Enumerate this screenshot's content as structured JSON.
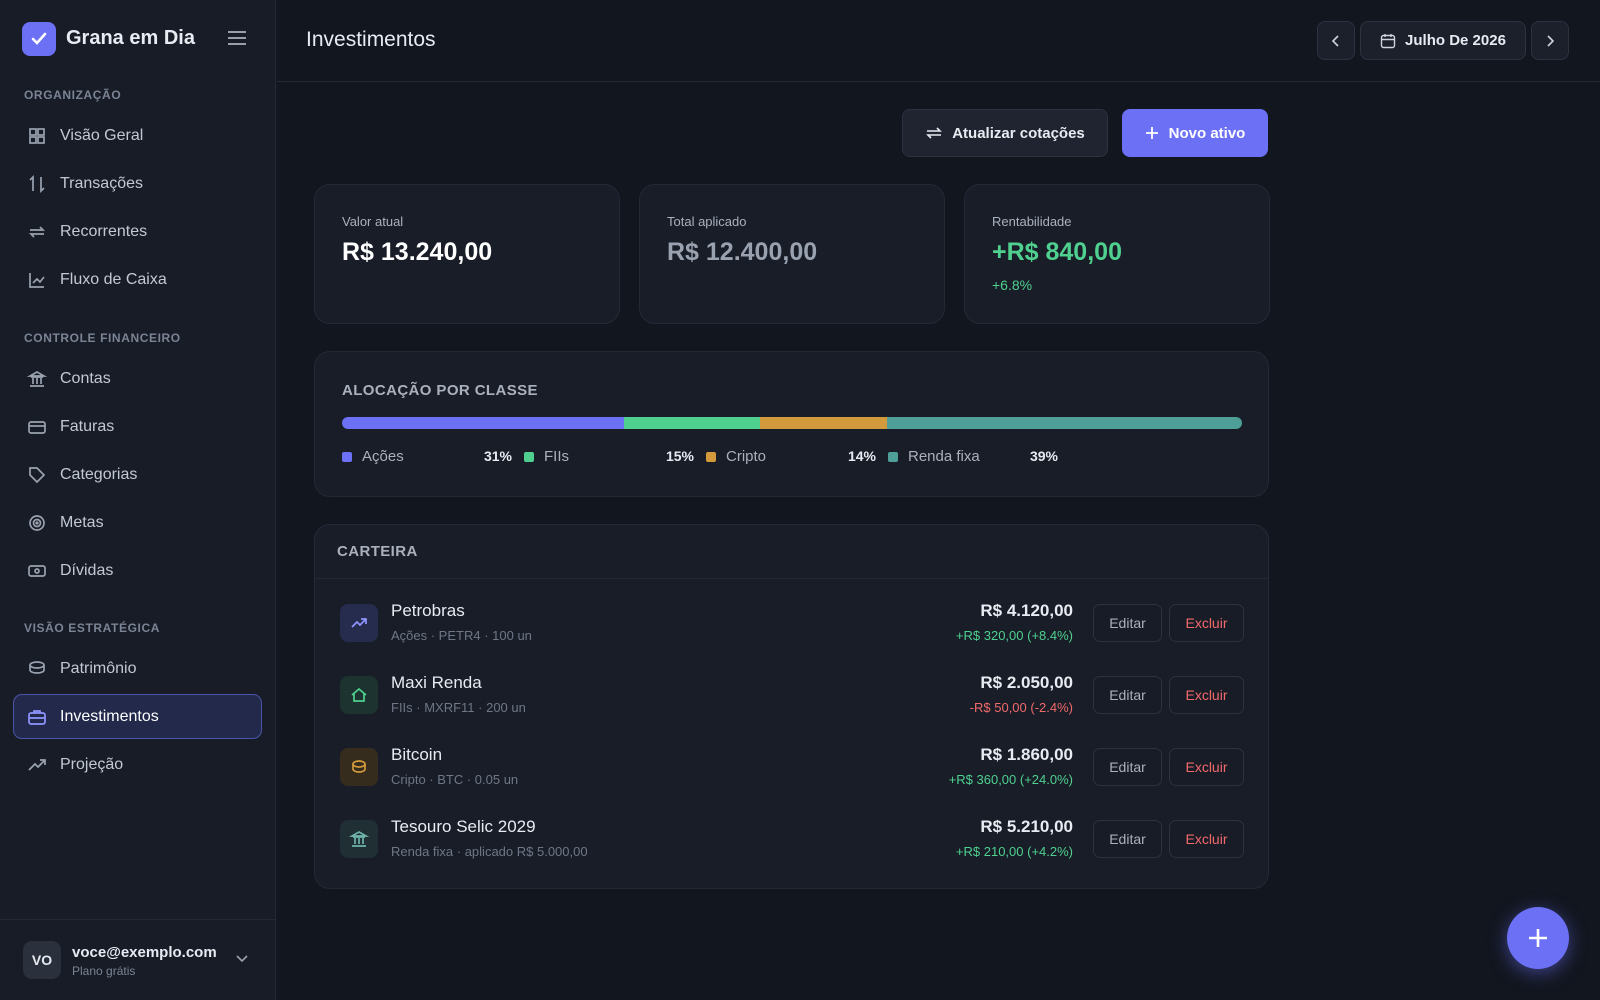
{
  "sidebar": {
    "brand": "Grana em Dia",
    "sections": [
      {
        "title": "ORGANIZAÇÃO",
        "items": [
          "Visão Geral",
          "Transações",
          "Recorrentes",
          "Fluxo de Caixa"
        ]
      },
      {
        "title": "CONTROLE FINANCEIRO",
        "items": [
          "Contas",
          "Faturas",
          "Categorias",
          "Metas",
          "Dívidas"
        ]
      },
      {
        "title": "VISÃO ESTRATÉGICA",
        "items": [
          "Patrimônio",
          "Investimentos",
          "Projeção"
        ]
      }
    ],
    "user": {
      "initials": "VO",
      "email": "voce@exemplo.com",
      "plan": "Plano grátis"
    }
  },
  "header": {
    "title": "Investimentos",
    "period": "Julho De 2026"
  },
  "actions": {
    "refresh": "Atualizar cotações",
    "new": "Novo ativo"
  },
  "cards": [
    {
      "label": "Valor atual",
      "value": "R$ 13.240,00"
    },
    {
      "label": "Total aplicado",
      "value": "R$ 12.400,00"
    },
    {
      "label": "Rentabilidade",
      "value": "+R$ 840,00",
      "change": "+6.8%"
    }
  ],
  "allocation": {
    "title": "ALOCAÇÃO POR CLASSE",
    "classes": [
      {
        "name": "Ações",
        "value": 31,
        "label": "31%",
        "color": "#6b70f5"
      },
      {
        "name": "FIIs",
        "value": 15,
        "label": "15%",
        "color": "#4fd08f"
      },
      {
        "name": "Cripto",
        "value": 14,
        "label": "14%",
        "color": "#d39a3c"
      },
      {
        "name": "Renda fixa",
        "value": 39,
        "label": "39%",
        "color": "#4e9f98"
      }
    ]
  },
  "portfolio": {
    "title": "CARTEIRA",
    "edit": "Editar",
    "delete": "Excluir",
    "rows": [
      {
        "name": "Petrobras",
        "detail": "Ações · PETR4 · 100 un",
        "value": "R$ 4.120,00",
        "change": "+R$ 320,00 (+8.4%)"
      },
      {
        "name": "Maxi Renda",
        "detail": "FIIs · MXRF11 · 200 un",
        "value": "R$ 2.050,00",
        "change": "-R$ 50,00 (-2.4%)"
      },
      {
        "name": "Bitcoin",
        "detail": "Cripto · BTC · 0.05 un",
        "value": "R$ 1.860,00",
        "change": "+R$ 360,00 (+24.0%)"
      },
      {
        "name": "Tesouro Selic 2029",
        "detail": "Renda fixa · aplicado R$ 5.000,00",
        "value": "R$ 5.210,00",
        "change": "+R$ 210,00 (+4.2%)"
      }
    ]
  }
}
